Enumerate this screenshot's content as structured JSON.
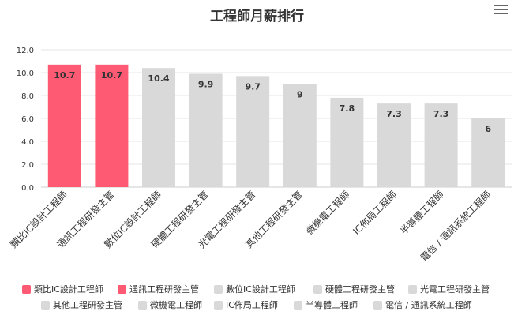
{
  "title": "工程師月薪排行",
  "menu_icon": "hamburger-menu-icon",
  "colors": {
    "highlight": "#ff5a74",
    "default": "#d9d9d9",
    "grid": "#e6e6e6",
    "axis": "#cccccc"
  },
  "chart_data": {
    "type": "bar",
    "title": "工程師月薪排行",
    "categories": [
      "類比IC設計工程師",
      "通訊工程研發主管",
      "數位IC設計工程師",
      "硬體工程研發主管",
      "光電工程研發主管",
      "其他工程研發主管",
      "微機電工程師",
      "IC佈局工程師",
      "半導體工程師",
      "電信 / 通訊系統工程師"
    ],
    "values": [
      10.7,
      10.7,
      10.4,
      9.9,
      9.7,
      9,
      7.8,
      7.3,
      7.3,
      6
    ],
    "value_labels": [
      "10.7",
      "10.7",
      "10.4",
      "9.9",
      "9.7",
      "9",
      "7.8",
      "7.3",
      "7.3",
      "6"
    ],
    "highlighted": [
      true,
      true,
      false,
      false,
      false,
      false,
      false,
      false,
      false,
      false
    ],
    "y_ticks": [
      "0.0",
      "2.0",
      "4.0",
      "6.0",
      "8.0",
      "10.0",
      "12.0"
    ],
    "ylim": [
      0,
      12
    ],
    "grid": true,
    "xlabel": "",
    "ylabel": "",
    "legend_position": "bottom"
  }
}
